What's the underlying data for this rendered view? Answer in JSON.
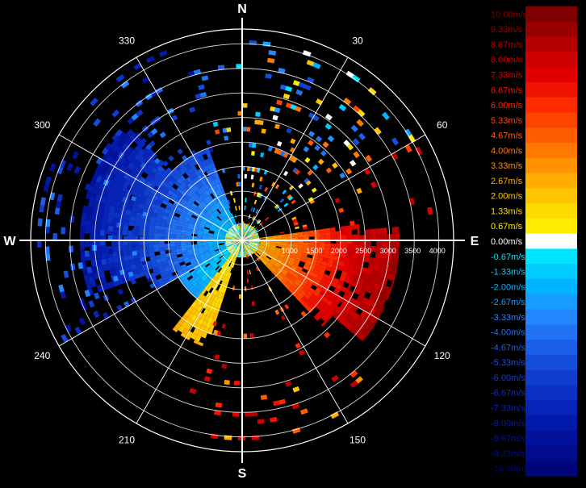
{
  "chart_data": {
    "type": "radar-ppi-velocity",
    "range_rings": {
      "unit": "m",
      "labels": [
        "1000",
        "1500",
        "2000",
        "2500",
        "3000",
        "3500",
        "4000"
      ],
      "label_values": [
        1000,
        1500,
        2000,
        2500,
        3000,
        3500,
        4000
      ],
      "outer_range": 4300
    },
    "cardinal_labels": [
      {
        "label": "N",
        "azimuth": 0
      },
      {
        "label": "E",
        "azimuth": 90
      },
      {
        "label": "S",
        "azimuth": 180
      },
      {
        "label": "W",
        "azimuth": 270
      }
    ],
    "azimuth_labels": [
      {
        "label": "30",
        "azimuth": 30
      },
      {
        "label": "60",
        "azimuth": 60
      },
      {
        "label": "120",
        "azimuth": 120
      },
      {
        "label": "150",
        "azimuth": 150
      },
      {
        "label": "210",
        "azimuth": 210
      },
      {
        "label": "240",
        "azimuth": 240
      },
      {
        "label": "300",
        "azimuth": 300
      },
      {
        "label": "330",
        "azimuth": 330
      }
    ],
    "colorbar": {
      "unit": "m/s",
      "levels": [
        {
          "label": "10.00m/s",
          "value": 10.0,
          "color": "#800000"
        },
        {
          "label": "9.33m/s",
          "value": 9.33,
          "color": "#9b0000"
        },
        {
          "label": "8.67m/s",
          "value": 8.67,
          "color": "#b40000"
        },
        {
          "label": "8.00m/s",
          "value": 8.0,
          "color": "#cc0000"
        },
        {
          "label": "7.33m/s",
          "value": 7.33,
          "color": "#e00000"
        },
        {
          "label": "6.67m/s",
          "value": 6.67,
          "color": "#f01400"
        },
        {
          "label": "6.00m/s",
          "value": 6.0,
          "color": "#ff2a00"
        },
        {
          "label": "5.33m/s",
          "value": 5.33,
          "color": "#ff4400"
        },
        {
          "label": "4.67m/s",
          "value": 4.67,
          "color": "#ff5e00"
        },
        {
          "label": "4.00m/s",
          "value": 4.0,
          "color": "#ff7800"
        },
        {
          "label": "3.33m/s",
          "value": 3.33,
          "color": "#ff9200"
        },
        {
          "label": "2.67m/s",
          "value": 2.67,
          "color": "#ffac00"
        },
        {
          "label": "2.00m/s",
          "value": 2.0,
          "color": "#ffc400"
        },
        {
          "label": "1.33m/s",
          "value": 1.33,
          "color": "#ffda00"
        },
        {
          "label": "0.67m/s",
          "value": 0.67,
          "color": "#ffec00"
        },
        {
          "label": "0.00m/s",
          "value": 0.0,
          "color": "#ffffff"
        },
        {
          "label": "-0.67m/s",
          "value": -0.67,
          "color": "#00e4ff"
        },
        {
          "label": "-1.33m/s",
          "value": -1.33,
          "color": "#00ccff"
        },
        {
          "label": "-2.00m/s",
          "value": -2.0,
          "color": "#00b4ff"
        },
        {
          "label": "-2.67m/s",
          "value": -2.67,
          "color": "#189cff"
        },
        {
          "label": "-3.33m/s",
          "value": -3.33,
          "color": "#2286ff"
        },
        {
          "label": "-4.00m/s",
          "value": -4.0,
          "color": "#2272f4"
        },
        {
          "label": "-4.67m/s",
          "value": -4.67,
          "color": "#1c5ee8"
        },
        {
          "label": "-5.33m/s",
          "value": -5.33,
          "color": "#164edc"
        },
        {
          "label": "-6.00m/s",
          "value": -6.0,
          "color": "#103ed0"
        },
        {
          "label": "-6.67m/s",
          "value": -6.67,
          "color": "#0a30c4"
        },
        {
          "label": "-7.33m/s",
          "value": -7.33,
          "color": "#0624b8"
        },
        {
          "label": "-8.00m/s",
          "value": -8.0,
          "color": "#041aaa"
        },
        {
          "label": "-8.67m/s",
          "value": -8.67,
          "color": "#02129c"
        },
        {
          "label": "-9.33m/s",
          "value": -9.33,
          "color": "#010c8c"
        },
        {
          "label": "-10.00m/s",
          "value": -10.0,
          "color": "#00067a"
        }
      ]
    },
    "sectors": [
      {
        "name": "west-approaching",
        "az_start": 240,
        "az_end": 340,
        "r_start": 150,
        "r_end": 2000,
        "v_near": -1.3,
        "v_far": -6.0
      },
      {
        "name": "west-approaching-far",
        "az_start": 250,
        "az_end": 315,
        "r_start": 2000,
        "r_end": 3300,
        "v_near": -6.0,
        "v_far": -8.5
      },
      {
        "name": "east-receding",
        "az_start": 82,
        "az_end": 137,
        "r_start": 150,
        "r_end": 2400,
        "v_near": 2.0,
        "v_far": 8.0
      },
      {
        "name": "east-receding-far",
        "az_start": 85,
        "az_end": 130,
        "r_start": 2400,
        "r_end": 3200,
        "v_near": 8.0,
        "v_far": 9.0
      },
      {
        "name": "southwest-receding",
        "az_start": 198,
        "az_end": 218,
        "r_start": 150,
        "r_end": 2300,
        "v_near": 0.7,
        "v_far": 2.3
      },
      {
        "name": "southwest-approaching",
        "az_start": 218,
        "az_end": 240,
        "r_start": 150,
        "r_end": 1500,
        "v_near": -0.7,
        "v_far": -2.7
      },
      {
        "name": "center-mix",
        "az_start": 0,
        "az_end": 360,
        "r_start": 0,
        "r_end": 350,
        "v_near": 0.0,
        "v_far": 1.0
      }
    ],
    "sparse_echoes": [
      {
        "az_start": 340,
        "az_end": 360,
        "r_start": 300,
        "r_end": 4000,
        "density": 0.12
      },
      {
        "az_start": 0,
        "az_end": 60,
        "r_start": 300,
        "r_end": 4000,
        "density": 0.2
      },
      {
        "az_start": 60,
        "az_end": 82,
        "r_start": 300,
        "r_end": 4000,
        "density": 0.08
      },
      {
        "az_start": 137,
        "az_end": 198,
        "r_start": 300,
        "r_end": 4000,
        "density": 0.1
      },
      {
        "az_start": 240,
        "az_end": 340,
        "r_start": 2000,
        "r_end": 4200,
        "density": 0.18
      }
    ]
  }
}
